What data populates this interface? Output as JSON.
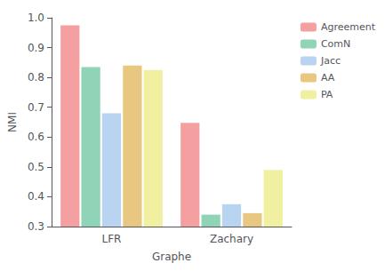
{
  "chart_data": {
    "type": "bar",
    "xlabel": "Graphe",
    "ylabel": "NMI",
    "categories": [
      "LFR",
      "Zachary"
    ],
    "series": [
      {
        "name": "Agreement",
        "color": "#f4a0a0",
        "values": [
          0.975,
          0.648
        ]
      },
      {
        "name": "ComN",
        "color": "#90d4b8",
        "values": [
          0.835,
          0.34
        ]
      },
      {
        "name": "Jacc",
        "color": "#b8d4f0",
        "values": [
          0.68,
          0.375
        ]
      },
      {
        "name": "AA",
        "color": "#e8c880",
        "values": [
          0.84,
          0.345
        ]
      },
      {
        "name": "PA",
        "color": "#f0f0a0",
        "values": [
          0.825,
          0.49
        ]
      }
    ],
    "ylim": [
      0.3,
      1.0
    ],
    "yticks": [
      0.3,
      0.4,
      0.5,
      0.6,
      0.7,
      0.8,
      0.9,
      {
        "value": 1.0,
        "label": "1.0"
      }
    ],
    "grid": false,
    "legend": "upper right"
  }
}
